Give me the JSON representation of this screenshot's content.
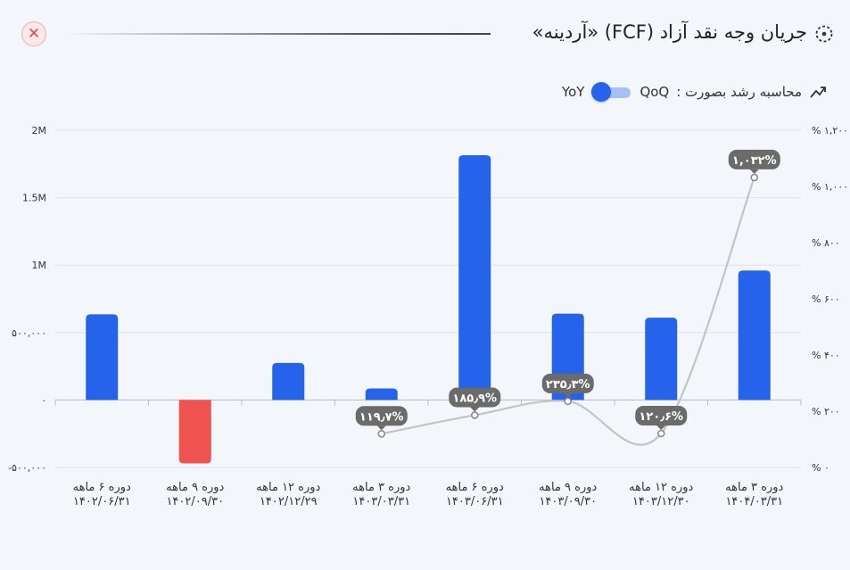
{
  "header": {
    "title": "جریان وجه نقد آزاد (FCF) «آردینه»",
    "close_icon": "close-icon",
    "title_icon": "spinner-icon"
  },
  "growth_toggle": {
    "label": "محاسبه رشد بصورت :",
    "option_left": "QoQ",
    "option_right": "YoY",
    "icon": "trending-up-icon"
  },
  "colors": {
    "positive": "#2563eb",
    "negative": "#ef5350",
    "line": "#c4c4c4",
    "badge": "#6b6b6b"
  },
  "chart_data": {
    "type": "bar",
    "categories": [
      [
        "دوره ۶ ماهه",
        "۱۴۰۲/۰۶/۳۱"
      ],
      [
        "دوره ۹ ماهه",
        "۱۴۰۲/۰۹/۳۰"
      ],
      [
        "دوره ۱۲ ماهه",
        "۱۴۰۲/۱۲/۲۹"
      ],
      [
        "دوره ۳ ماهه",
        "۱۴۰۳/۰۳/۳۱"
      ],
      [
        "دوره ۶ ماهه",
        "۱۴۰۳/۰۶/۳۱"
      ],
      [
        "دوره ۹ ماهه",
        "۱۴۰۳/۰۹/۳۰"
      ],
      [
        "دوره ۱۲ ماهه",
        "۱۴۰۳/۱۲/۳۰"
      ],
      [
        "دوره ۳ ماهه",
        "۱۴۰۴/۰۳/۳۱"
      ]
    ],
    "values": [
      635000,
      -470000,
      275000,
      85000,
      1815000,
      640000,
      610000,
      960000
    ],
    "ylim": [
      -500000,
      2000000
    ],
    "yticks": [
      -500000,
      0,
      500000,
      1000000,
      1500000,
      2000000
    ],
    "ytick_labels": [
      "-۵۰۰,۰۰۰",
      "۰",
      "۵۰۰,۰۰۰",
      "1M",
      "1.5M",
      "2M"
    ],
    "secondary_axis": {
      "ylim": [
        0,
        1200
      ],
      "yticks": [
        0,
        200,
        400,
        600,
        800,
        1000,
        1200
      ],
      "ytick_labels": [
        "% ۰",
        "% ۲۰۰",
        "% ۴۰۰",
        "% ۶۰۰",
        "% ۸۰۰",
        "% ۱,۰۰۰",
        "% ۱,۲۰۰"
      ]
    },
    "growth_series": {
      "indices": [
        3,
        4,
        5,
        6,
        7
      ],
      "values": [
        119.7,
        185.9,
        235.3,
        120.6,
        1032
      ],
      "labels": [
        "۱۱۹٫۷%",
        "۱۸۵٫۹%",
        "۲۳۵٫۳%",
        "۱۲۰٫۶%",
        "۱,۰۳۲%"
      ]
    },
    "grid": true
  }
}
